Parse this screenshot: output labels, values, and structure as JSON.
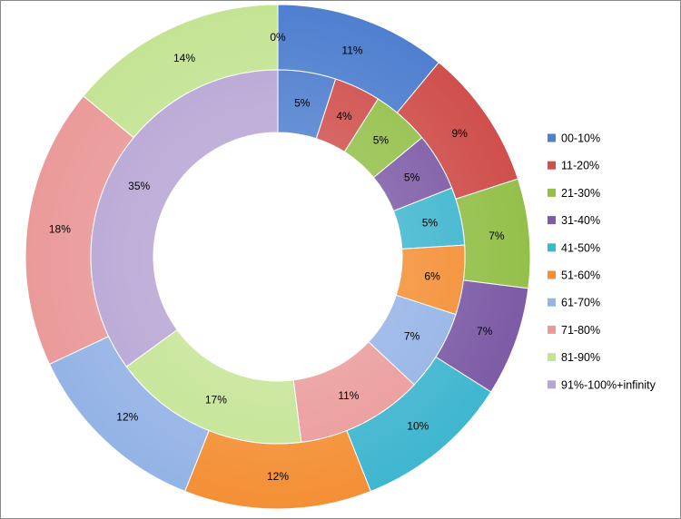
{
  "chart_data": {
    "type": "doughnut",
    "title": "",
    "legend_position": "right",
    "categories": [
      "00-10%",
      "11-20%",
      "21-30%",
      "31-40%",
      "41-50%",
      "51-60%",
      "61-70%",
      "71-80%",
      "81-90%",
      "91%-100%+infinity"
    ],
    "colors": [
      "#4f7fcf",
      "#cf4f4c",
      "#94c04a",
      "#7d5ba6",
      "#3fb6cf",
      "#f48f35",
      "#94b3e6",
      "#ea9a99",
      "#c4e494",
      "#b7a5d4"
    ],
    "series": [
      {
        "ring": "outer",
        "values": [
          11,
          9,
          7,
          7,
          10,
          12,
          12,
          18,
          14,
          0
        ]
      },
      {
        "ring": "inner",
        "values": [
          5,
          4,
          5,
          5,
          5,
          6,
          7,
          11,
          17,
          35
        ]
      }
    ]
  }
}
